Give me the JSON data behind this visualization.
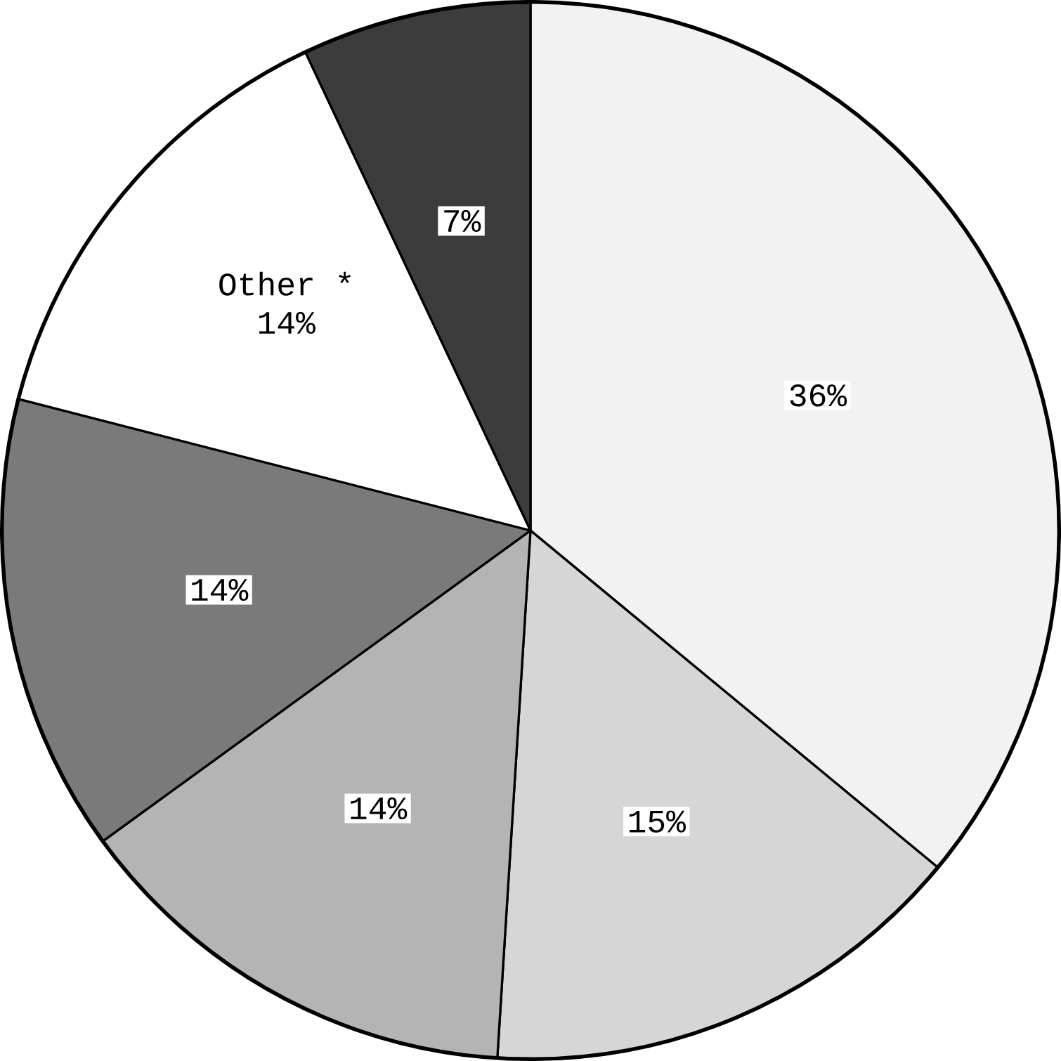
{
  "chart_data": {
    "type": "pie",
    "categories": [
      null,
      null,
      null,
      null,
      "Other *",
      null
    ],
    "values": [
      36,
      15,
      14,
      14,
      14,
      7
    ],
    "value_labels": [
      "36%",
      "15%",
      "14%",
      "14%",
      "14%",
      "7%"
    ],
    "colors": [
      "#f2f2f2",
      "#d6d6d6",
      "#b4b4b4",
      "#7a7a7a",
      "#ffffff",
      "#3c3c3c"
    ]
  }
}
